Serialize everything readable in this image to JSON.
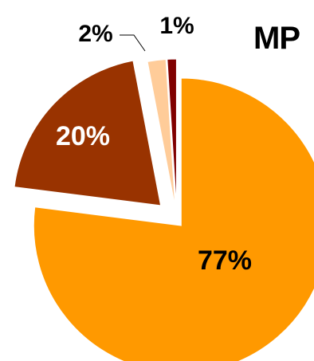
{
  "chart_data": {
    "type": "pie",
    "title": "MP",
    "exploded": true,
    "slices": [
      {
        "label": "77%",
        "value": 77,
        "color": "#FF9900",
        "label_color": "#000000"
      },
      {
        "label": "20%",
        "value": 20,
        "color": "#993300",
        "label_color": "#FFFFFF"
      },
      {
        "label": "2%",
        "value": 2,
        "color": "#FFCC99",
        "label_color": "#000000"
      },
      {
        "label": "1%",
        "value": 1,
        "color": "#800000",
        "label_color": "#000000"
      }
    ]
  }
}
